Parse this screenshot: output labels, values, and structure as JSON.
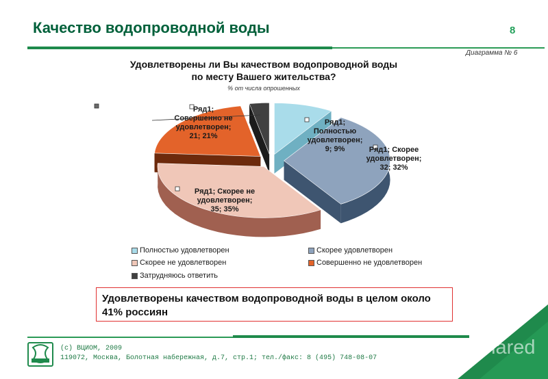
{
  "slide": {
    "title": "Качество водопроводной воды",
    "page_number": "8",
    "diagram_no": "Диаграмма № 6",
    "conclusion": "Удовлетворены качеством водопроводной воды в целом около 41% россиян",
    "footer_line1": "(c) ВЦИОМ, 2009",
    "footer_line2": "119072, Москва, Болотная набережная, д.7, стр.1; тел./факс: 8 (495) 748-08-07",
    "watermark": "Shared"
  },
  "chart_data": {
    "type": "pie",
    "title_line1": "Удовлетворены ли Вы качеством водопроводной воды",
    "title_line2": "по месту Вашего жительства?",
    "subtitle": "% от числа опрошенных",
    "series_name": "Ряд1",
    "categories": [
      "Полностью удовлетворен",
      "Скорее удовлетворен",
      "Скорее не удовлетворен",
      "Совершенно не удовлетворен",
      "Затрудняюсь ответить"
    ],
    "values": [
      9,
      32,
      35,
      21,
      3
    ],
    "colors": [
      "#a9dcea",
      "#8ea3bd",
      "#f0c7b8",
      "#e3632a",
      "#404040"
    ],
    "side_colors": [
      "#6fb0c2",
      "#3e5570",
      "#a06050",
      "#6d2a0c",
      "#1c1c1c"
    ],
    "data_labels": [
      [
        "Ряд1;",
        "Полностью",
        "удовлетворен;",
        "9; 9%"
      ],
      [
        "Ряд1; Скорее",
        "удовлетворен;",
        "32; 32%"
      ],
      [
        "Ряд1; Скорее не",
        "удовлетворен;",
        "35; 35%"
      ],
      [
        "Ряд1;",
        "Совершенно не",
        "удовлетворен;",
        "21; 21%"
      ],
      []
    ],
    "legend": [
      "Полностью удовлетворен",
      "Скорее удовлетворен",
      "Скорее не удовлетворен",
      "Совершенно не удовлетворен",
      "Затрудняюсь ответить"
    ],
    "legend_placement": "bottom"
  }
}
